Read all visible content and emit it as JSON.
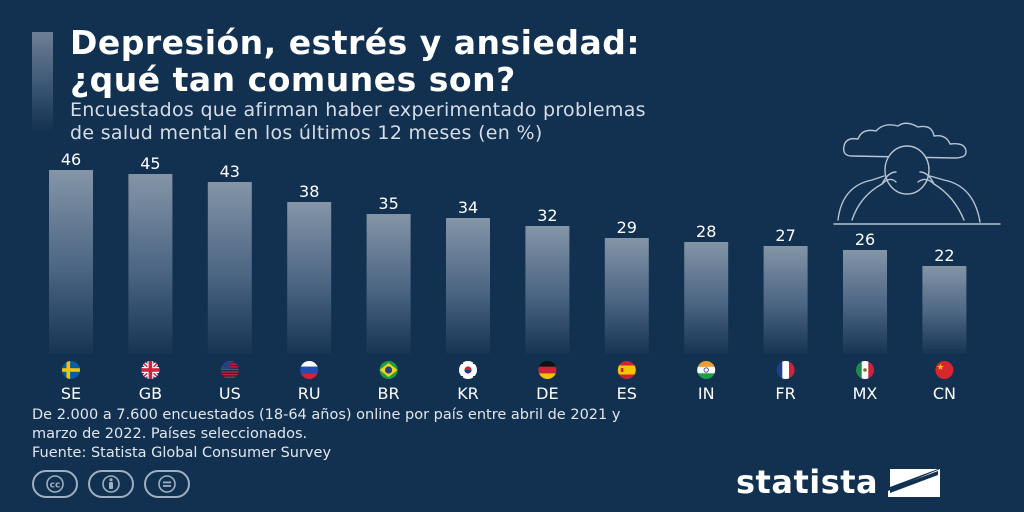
{
  "title": {
    "line1": "Depresión, estrés y ansiedad:",
    "line2": "¿qué tan comunes son?"
  },
  "subtitle": {
    "line1": "Encuestados que afirman haber experimentado problemas",
    "line2": "de salud mental en los últimos 12 meses (en %)"
  },
  "chart_data": {
    "type": "bar",
    "title": "Depresión, estrés y ansiedad: ¿qué tan comunes son?",
    "ylabel": "en %",
    "xlabel": "",
    "ylim": [
      0,
      46
    ],
    "grid": false,
    "categories": [
      "SE",
      "GB",
      "US",
      "RU",
      "BR",
      "KR",
      "DE",
      "ES",
      "IN",
      "FR",
      "MX",
      "CN"
    ],
    "values": [
      46,
      45,
      43,
      38,
      35,
      34,
      32,
      29,
      28,
      27,
      26,
      22
    ],
    "flags": [
      "flag-sweden",
      "flag-uk",
      "flag-usa",
      "flag-russia",
      "flag-brazil",
      "flag-south-korea",
      "flag-germany",
      "flag-spain",
      "flag-india",
      "flag-france",
      "flag-mexico",
      "flag-china"
    ]
  },
  "footnote": {
    "line1": "De 2.000 a 7.600 encuestados (18-64 años) online por país entre abril de 2021 y",
    "line2": "marzo de 2022. Países seleccionados.",
    "line3": "Fuente: Statista Global Consumer Survey"
  },
  "brand": {
    "name": "statista"
  },
  "colors": {
    "background": "#12304f",
    "bar_top": "#7f8fa1",
    "bar_bottom": "#1a3757",
    "text": "#ffffff"
  },
  "icons": [
    "cc-icon",
    "by-icon",
    "nd-icon",
    "statista-logo-icon",
    "person-illustration"
  ]
}
